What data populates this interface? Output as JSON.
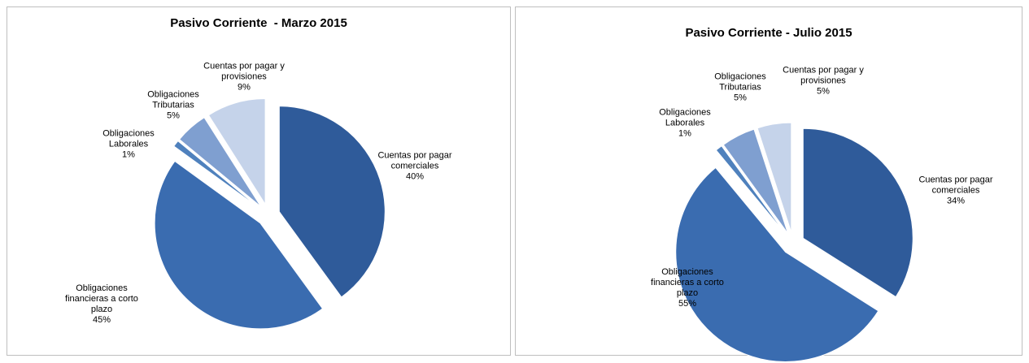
{
  "chart_data": [
    {
      "type": "pie",
      "title": "Pasivo Corriente  - Marzo 2015",
      "categories": [
        "Cuentas por pagar comerciales",
        "Obligaciones financieras a corto plazo",
        "Obligaciones Laborales",
        "Obligaciones Tributarias",
        "Cuentas por pagar y provisiones"
      ],
      "values": [
        40,
        45,
        1,
        5,
        9
      ],
      "value_labels": [
        "40%",
        "45%",
        "1%",
        "5%",
        "9%"
      ],
      "colors": [
        "#2f5b9a",
        "#3a6cb0",
        "#4f81bd",
        "#7f9fd0",
        "#c5d3ea"
      ]
    },
    {
      "type": "pie",
      "title": "Pasivo Corriente - Julio 2015",
      "categories": [
        "Cuentas por pagar comerciales",
        "Obligaciones financieras a corto plazo",
        "Obligaciones Laborales",
        "Obligaciones Tributarias",
        "Cuentas por pagar y provisiones"
      ],
      "values": [
        34,
        55,
        1,
        5,
        5
      ],
      "value_labels": [
        "34%",
        "55%",
        "1%",
        "5%",
        "5%"
      ],
      "colors": [
        "#2f5b9a",
        "#3a6cb0",
        "#4f81bd",
        "#7f9fd0",
        "#c5d3ea"
      ]
    }
  ]
}
